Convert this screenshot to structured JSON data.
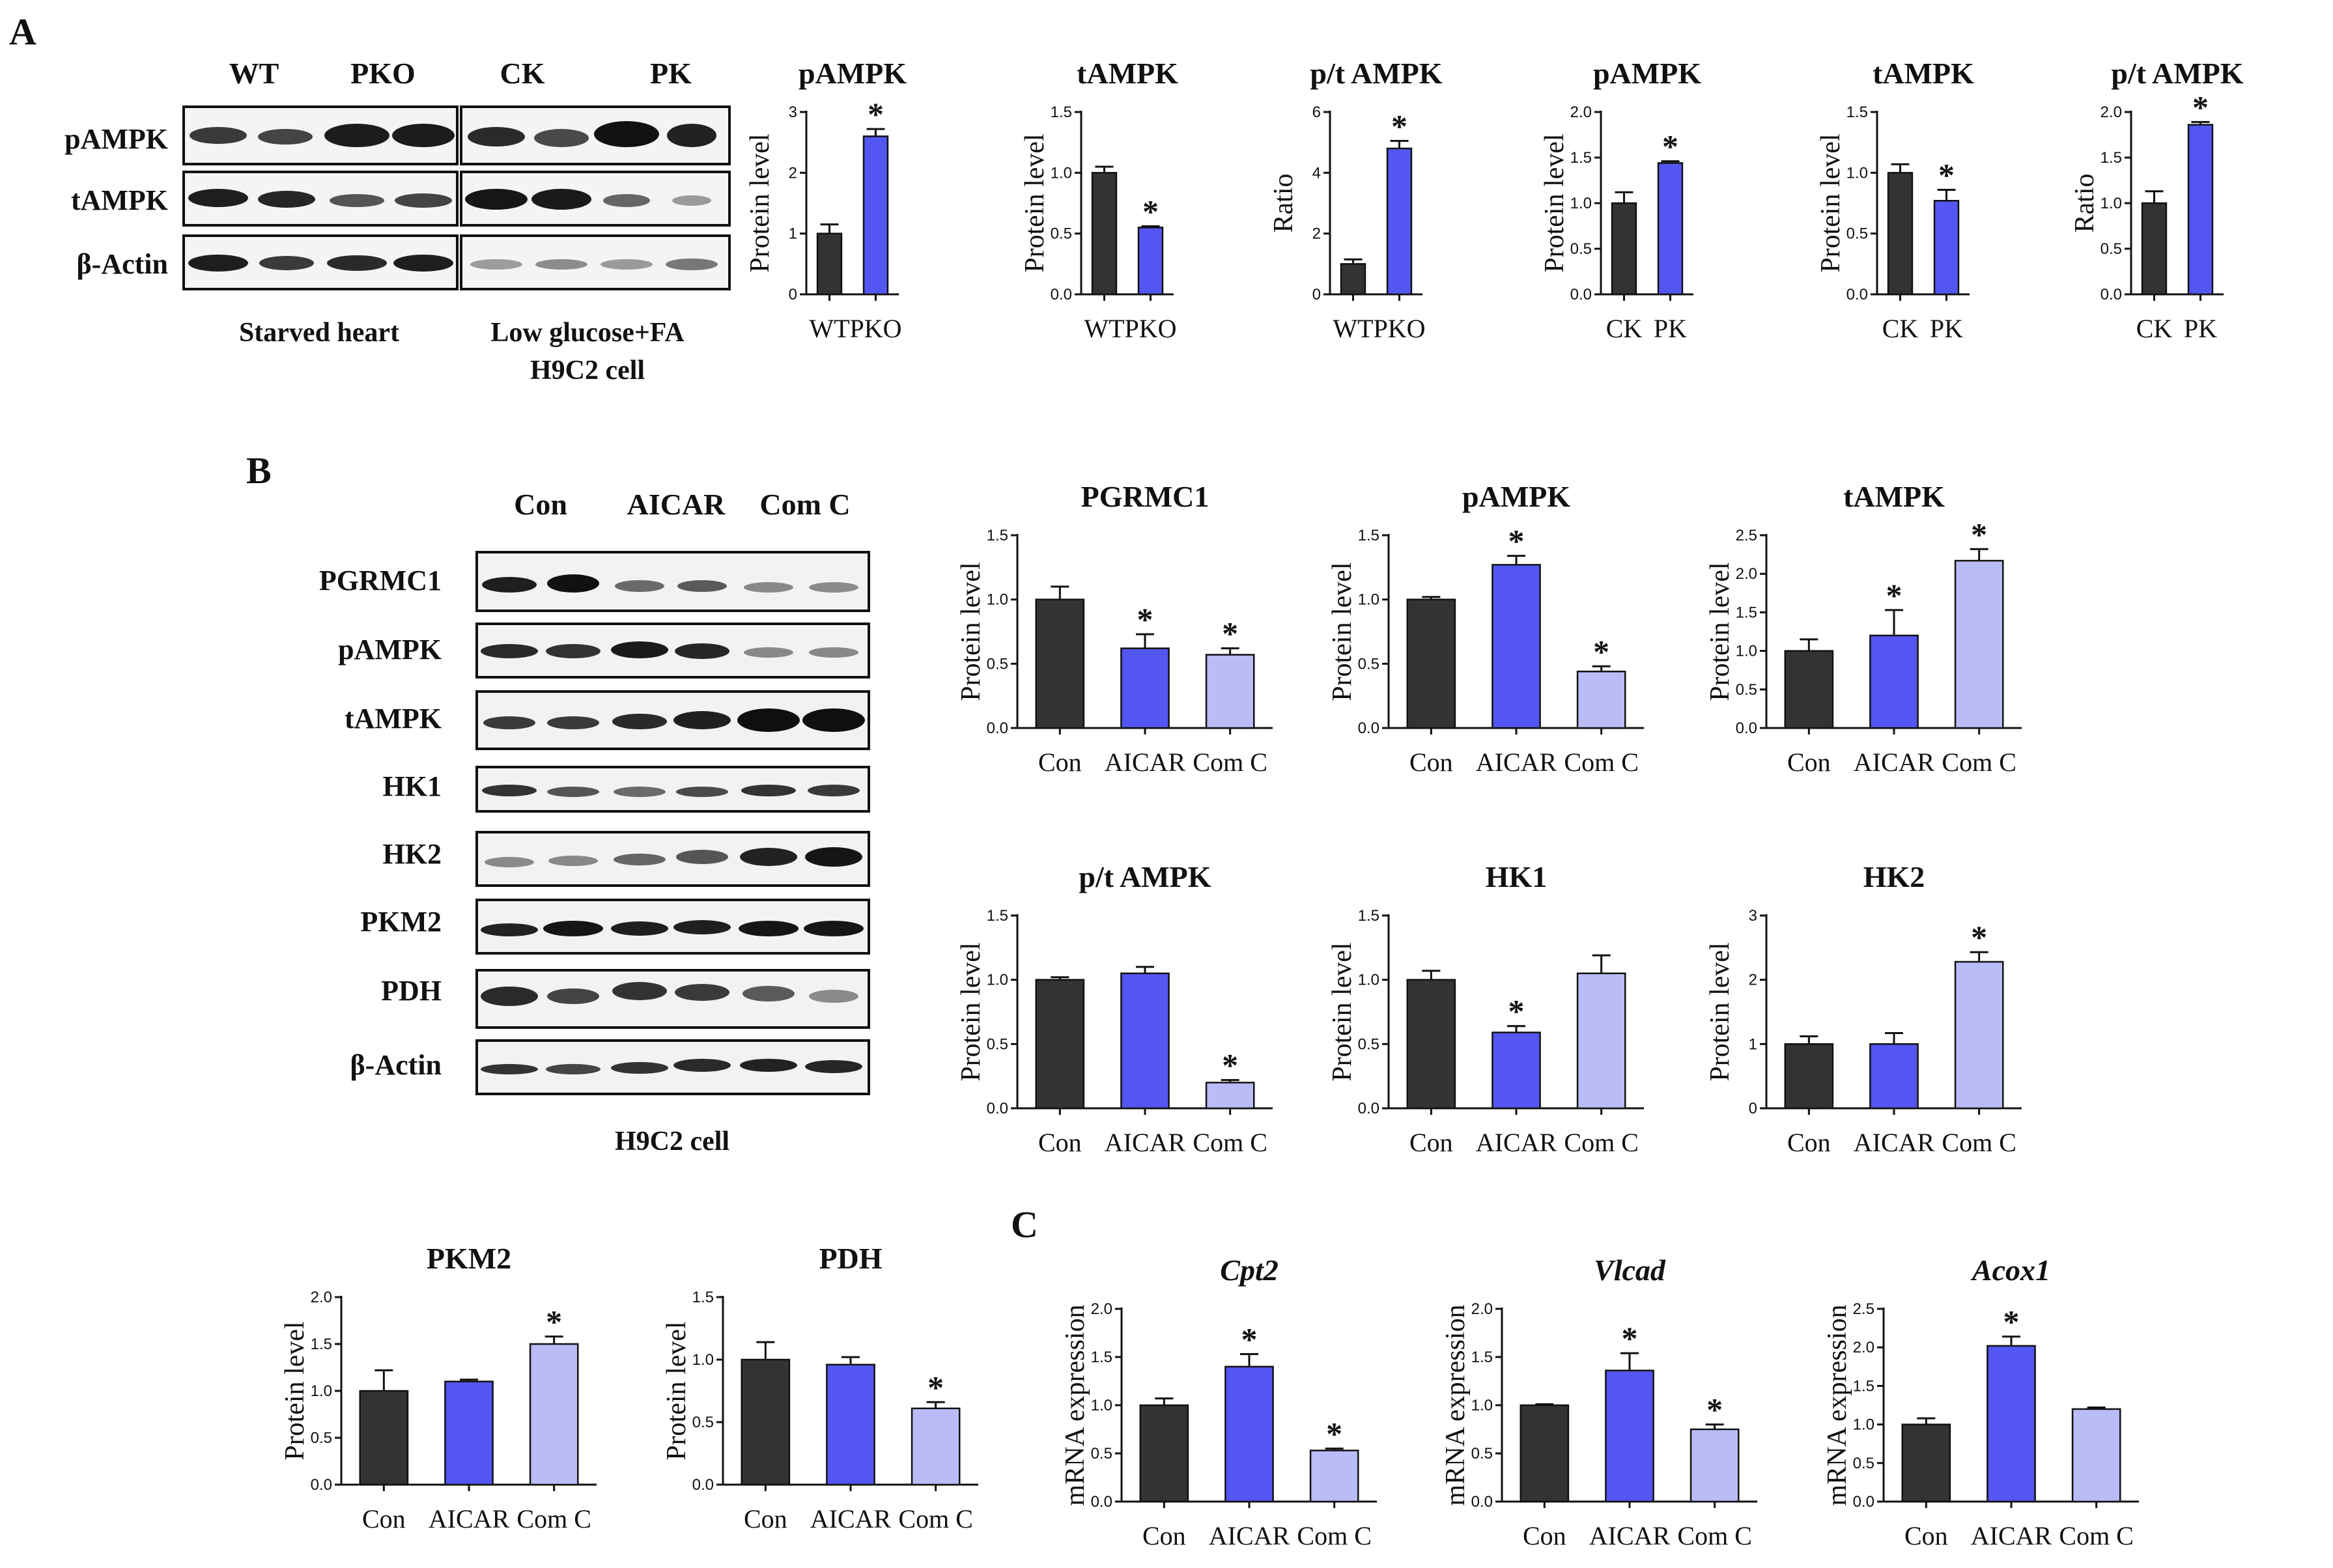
{
  "panels": {
    "A": "A",
    "B": "B",
    "C": "C"
  },
  "colors": {
    "dark": "#333333",
    "blue": "#5456f2",
    "light": "#b9bcf6",
    "band": "#1a1a1a"
  },
  "blots_a": {
    "starved_heart": {
      "groups": [
        "WT",
        "PKO"
      ],
      "caption": "Starved heart",
      "rows": [
        "pAMPK",
        "tAMPK",
        "β-Actin"
      ]
    },
    "h9c2_lowglucose": {
      "groups": [
        "CK",
        "PK"
      ],
      "caption_line1": "Low glucose+FA",
      "caption_line2": "H9C2 cell"
    }
  },
  "blots_b": {
    "groups": [
      "Con",
      "AICAR",
      "Com C"
    ],
    "rows": [
      "PGRMC1",
      "pAMPK",
      "tAMPK",
      "HK1",
      "HK2",
      "PKM2",
      "PDH",
      "β-Actin"
    ],
    "caption": "H9C2 cell"
  },
  "chart_data": [
    {
      "id": "a1",
      "type": "bar",
      "title": "pAMPK",
      "ylabel": "Protein level",
      "categories": [
        "WT",
        "PKO"
      ],
      "values": [
        1.0,
        2.6
      ],
      "errors": [
        0.15,
        0.12
      ],
      "sig": [
        false,
        true
      ],
      "ylim": [
        0,
        3
      ],
      "yticks": [
        "0",
        "1",
        "2",
        "3"
      ],
      "colors": [
        "dark",
        "blue"
      ]
    },
    {
      "id": "a2",
      "type": "bar",
      "title": "tAMPK",
      "ylabel": "Protein level",
      "categories": [
        "WT",
        "PKO"
      ],
      "values": [
        1.0,
        0.55
      ],
      "errors": [
        0.05,
        0.01
      ],
      "sig": [
        false,
        true
      ],
      "ylim": [
        0,
        1.5
      ],
      "yticks": [
        "0.0",
        "0.5",
        "1.0",
        "1.5"
      ],
      "colors": [
        "dark",
        "blue"
      ]
    },
    {
      "id": "a3",
      "type": "bar",
      "title": "p/t AMPK",
      "ylabel": "Ratio",
      "categories": [
        "WT",
        "PKO"
      ],
      "values": [
        1.0,
        4.8
      ],
      "errors": [
        0.15,
        0.25
      ],
      "sig": [
        false,
        true
      ],
      "ylim": [
        0,
        6
      ],
      "yticks": [
        "0",
        "2",
        "4",
        "6"
      ],
      "colors": [
        "dark",
        "blue"
      ]
    },
    {
      "id": "a4",
      "type": "bar",
      "title": "pAMPK",
      "ylabel": "Protein level",
      "categories": [
        "CK",
        "PK"
      ],
      "values": [
        1.0,
        1.44
      ],
      "errors": [
        0.12,
        0.02
      ],
      "sig": [
        false,
        true
      ],
      "ylim": [
        0,
        2.0
      ],
      "yticks": [
        "0.0",
        "0.5",
        "1.0",
        "1.5",
        "2.0"
      ],
      "colors": [
        "dark",
        "blue"
      ]
    },
    {
      "id": "a5",
      "type": "bar",
      "title": "tAMPK",
      "ylabel": "Protein level",
      "categories": [
        "CK",
        "PK"
      ],
      "values": [
        1.0,
        0.77
      ],
      "errors": [
        0.07,
        0.09
      ],
      "sig": [
        false,
        true
      ],
      "ylim": [
        0,
        1.5
      ],
      "yticks": [
        "0.0",
        "0.5",
        "1.0",
        "1.5"
      ],
      "colors": [
        "dark",
        "blue"
      ]
    },
    {
      "id": "a6",
      "type": "bar",
      "title": "p/t AMPK",
      "ylabel": "Ratio",
      "categories": [
        "CK",
        "PK"
      ],
      "values": [
        1.0,
        1.86
      ],
      "errors": [
        0.13,
        0.03
      ],
      "sig": [
        false,
        true
      ],
      "ylim": [
        0,
        2.0
      ],
      "yticks": [
        "0.0",
        "0.5",
        "1.0",
        "1.5",
        "2.0"
      ],
      "colors": [
        "dark",
        "blue"
      ]
    },
    {
      "id": "b1",
      "type": "bar",
      "title": "PGRMC1",
      "ylabel": "Protein level",
      "categories": [
        "Con",
        "AICAR",
        "Com C"
      ],
      "values": [
        1.0,
        0.62,
        0.57
      ],
      "errors": [
        0.1,
        0.11,
        0.05
      ],
      "sig": [
        false,
        true,
        true
      ],
      "ylim": [
        0,
        1.5
      ],
      "yticks": [
        "0.0",
        "0.5",
        "1.0",
        "1.5"
      ],
      "colors": [
        "dark",
        "blue",
        "light"
      ]
    },
    {
      "id": "b2",
      "type": "bar",
      "title": "pAMPK",
      "ylabel": "Protein level",
      "categories": [
        "Con",
        "AICAR",
        "Com C"
      ],
      "values": [
        1.0,
        1.27,
        0.44
      ],
      "errors": [
        0.02,
        0.07,
        0.04
      ],
      "sig": [
        false,
        true,
        true
      ],
      "ylim": [
        0,
        1.5
      ],
      "yticks": [
        "0.0",
        "0.5",
        "1.0",
        "1.5"
      ],
      "colors": [
        "dark",
        "blue",
        "light"
      ]
    },
    {
      "id": "b3",
      "type": "bar",
      "title": "tAMPK",
      "ylabel": "Protein level",
      "categories": [
        "Con",
        "AICAR",
        "Com C"
      ],
      "values": [
        1.0,
        1.2,
        2.17
      ],
      "errors": [
        0.15,
        0.33,
        0.15
      ],
      "sig": [
        false,
        true,
        true
      ],
      "ylim": [
        0,
        2.5
      ],
      "yticks": [
        "0.0",
        "0.5",
        "1.0",
        "1.5",
        "2.0",
        "2.5"
      ],
      "colors": [
        "dark",
        "blue",
        "light"
      ]
    },
    {
      "id": "b4",
      "type": "bar",
      "title": "p/t AMPK",
      "ylabel": "Protein level",
      "categories": [
        "Con",
        "AICAR",
        "Com C"
      ],
      "values": [
        1.0,
        1.05,
        0.2
      ],
      "errors": [
        0.02,
        0.05,
        0.02
      ],
      "sig": [
        false,
        false,
        true
      ],
      "ylim": [
        0,
        1.5
      ],
      "yticks": [
        "0.0",
        "0.5",
        "1.0",
        "1.5"
      ],
      "colors": [
        "dark",
        "blue",
        "light"
      ]
    },
    {
      "id": "b5",
      "type": "bar",
      "title": "HK1",
      "ylabel": "Protein level",
      "categories": [
        "Con",
        "AICAR",
        "Com C"
      ],
      "values": [
        1.0,
        0.59,
        1.05
      ],
      "errors": [
        0.07,
        0.05,
        0.14
      ],
      "sig": [
        false,
        true,
        false
      ],
      "ylim": [
        0,
        1.5
      ],
      "yticks": [
        "0.0",
        "0.5",
        "1.0",
        "1.5"
      ],
      "colors": [
        "dark",
        "blue",
        "light"
      ]
    },
    {
      "id": "b6",
      "type": "bar",
      "title": "HK2",
      "ylabel": "Protein level",
      "categories": [
        "Con",
        "AICAR",
        "Com C"
      ],
      "values": [
        1.0,
        1.0,
        2.28
      ],
      "errors": [
        0.12,
        0.17,
        0.15
      ],
      "sig": [
        false,
        false,
        true
      ],
      "ylim": [
        0,
        3
      ],
      "yticks": [
        "0",
        "1",
        "2",
        "3"
      ],
      "colors": [
        "dark",
        "blue",
        "light"
      ]
    },
    {
      "id": "b7",
      "type": "bar",
      "title": "PKM2",
      "ylabel": "Protein level",
      "categories": [
        "Con",
        "AICAR",
        "Com C"
      ],
      "values": [
        1.0,
        1.1,
        1.5
      ],
      "errors": [
        0.22,
        0.02,
        0.08
      ],
      "sig": [
        false,
        false,
        true
      ],
      "ylim": [
        0,
        2.0
      ],
      "yticks": [
        "0.0",
        "0.5",
        "1.0",
        "1.5",
        "2.0"
      ],
      "colors": [
        "dark",
        "blue",
        "light"
      ]
    },
    {
      "id": "b8",
      "type": "bar",
      "title": "PDH",
      "ylabel": "Protein level",
      "categories": [
        "Con",
        "AICAR",
        "Com C"
      ],
      "values": [
        1.0,
        0.96,
        0.61
      ],
      "errors": [
        0.14,
        0.06,
        0.05
      ],
      "sig": [
        false,
        false,
        true
      ],
      "ylim": [
        0,
        1.5
      ],
      "yticks": [
        "0.0",
        "0.5",
        "1.0",
        "1.5"
      ],
      "colors": [
        "dark",
        "blue",
        "light"
      ]
    },
    {
      "id": "c1",
      "type": "bar",
      "title": "Cpt2",
      "italic": true,
      "ylabel": "mRNA expression",
      "categories": [
        "Con",
        "AICAR",
        "Com C"
      ],
      "values": [
        1.0,
        1.4,
        0.53
      ],
      "errors": [
        0.07,
        0.13,
        0.02
      ],
      "sig": [
        false,
        true,
        true
      ],
      "ylim": [
        0,
        2.0
      ],
      "yticks": [
        "0.0",
        "0.5",
        "1.0",
        "1.5",
        "2.0"
      ],
      "colors": [
        "dark",
        "blue",
        "light"
      ]
    },
    {
      "id": "c2",
      "type": "bar",
      "title": "Vlcad",
      "italic": true,
      "ylabel": "mRNA expression",
      "categories": [
        "Con",
        "AICAR",
        "Com C"
      ],
      "values": [
        1.0,
        1.36,
        0.75
      ],
      "errors": [
        0.01,
        0.18,
        0.05
      ],
      "sig": [
        false,
        true,
        true
      ],
      "ylim": [
        0,
        2.0
      ],
      "yticks": [
        "0.0",
        "0.5",
        "1.0",
        "1.5",
        "2.0"
      ],
      "colors": [
        "dark",
        "blue",
        "light"
      ]
    },
    {
      "id": "c3",
      "type": "bar",
      "title": "Acox1",
      "italic": true,
      "ylabel": "mRNA expression",
      "categories": [
        "Con",
        "AICAR",
        "Com C"
      ],
      "values": [
        1.0,
        2.02,
        1.2
      ],
      "errors": [
        0.08,
        0.12,
        0.02
      ],
      "sig": [
        false,
        true,
        false
      ],
      "ylim": [
        0,
        2.5
      ],
      "yticks": [
        "0.0",
        "0.5",
        "1.0",
        "1.5",
        "2.0",
        "2.5"
      ],
      "colors": [
        "dark",
        "blue",
        "light"
      ]
    }
  ]
}
